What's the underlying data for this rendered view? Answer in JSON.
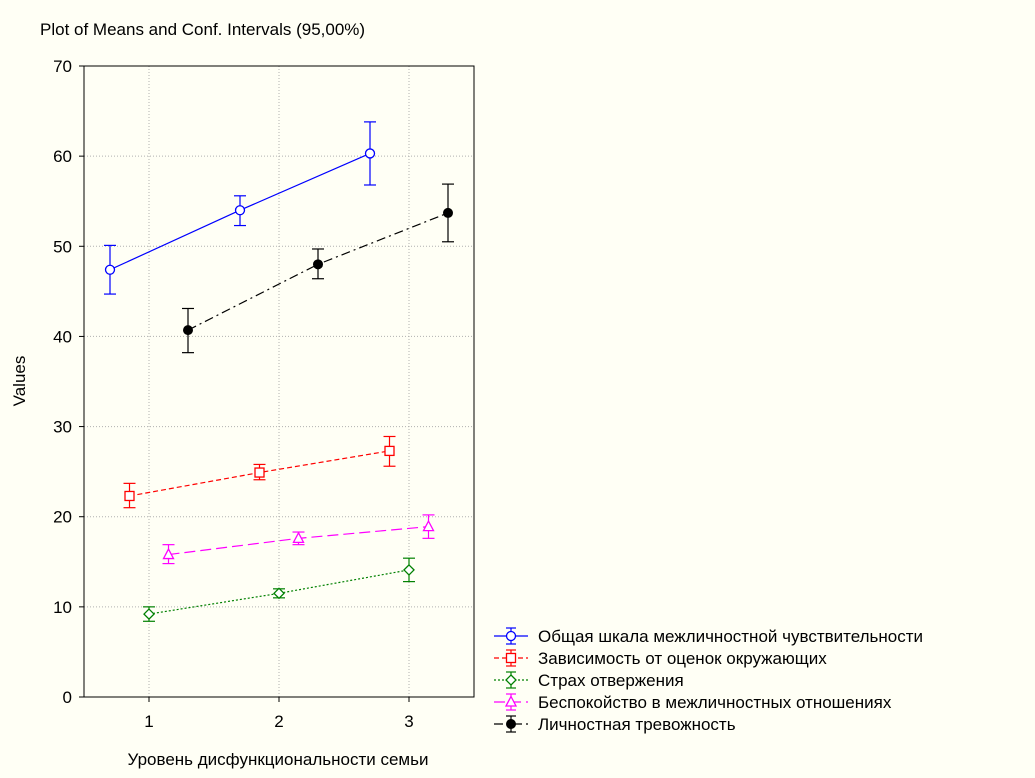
{
  "chart_data": {
    "type": "line",
    "title": "Plot of Means and Conf. Intervals (95,00%)",
    "xlabel": "Уровень дисфункциональности семьи",
    "ylabel": "Values",
    "x_ticks": [
      "1",
      "2",
      "3"
    ],
    "y_ticks": [
      "0",
      "10",
      "20",
      "30",
      "40",
      "50",
      "60",
      "70"
    ],
    "xlim": [
      0.5,
      3.5
    ],
    "ylim": [
      0,
      70
    ],
    "grid": true,
    "legend_position": "bottom-right",
    "series": [
      {
        "name": "Общая шкала межличностной чувствительности",
        "color": "#0000ff",
        "marker": "circle-open",
        "line": "solid",
        "x": [
          1,
          2,
          3
        ],
        "y": [
          47.4,
          54.0,
          60.3
        ],
        "ci_low": [
          44.7,
          52.3,
          56.8
        ],
        "ci_high": [
          50.1,
          55.6,
          63.8
        ]
      },
      {
        "name": "Зависимость от оценок окружающих",
        "color": "#ff0000",
        "marker": "square-open",
        "line": "dashed",
        "x": [
          1,
          2,
          3
        ],
        "y": [
          22.3,
          24.9,
          27.3
        ],
        "ci_low": [
          21.0,
          24.1,
          25.6
        ],
        "ci_high": [
          23.7,
          25.8,
          28.9
        ]
      },
      {
        "name": "Страх отвержения",
        "color": "#008000",
        "marker": "diamond-open",
        "line": "dotted",
        "x": [
          1,
          2,
          3
        ],
        "y": [
          9.2,
          11.5,
          14.1
        ],
        "ci_low": [
          8.4,
          11.0,
          12.8
        ],
        "ci_high": [
          10.0,
          12.0,
          15.4
        ]
      },
      {
        "name": "Беспокойство в межличностных отношениях",
        "color": "#ff00ff",
        "marker": "triangle-open",
        "line": "longdash",
        "x": [
          1,
          2,
          3
        ],
        "y": [
          15.8,
          17.6,
          18.9
        ],
        "ci_low": [
          14.8,
          16.9,
          17.6
        ],
        "ci_high": [
          16.9,
          18.3,
          20.2
        ]
      },
      {
        "name": "Личностная тревожность",
        "color": "#000000",
        "marker": "circle-filled",
        "line": "dashdot",
        "x": [
          1,
          2,
          3
        ],
        "y": [
          40.7,
          48.0,
          53.7
        ],
        "ci_low": [
          38.2,
          46.4,
          50.5
        ],
        "ci_high": [
          43.1,
          49.7,
          56.9
        ]
      }
    ]
  }
}
